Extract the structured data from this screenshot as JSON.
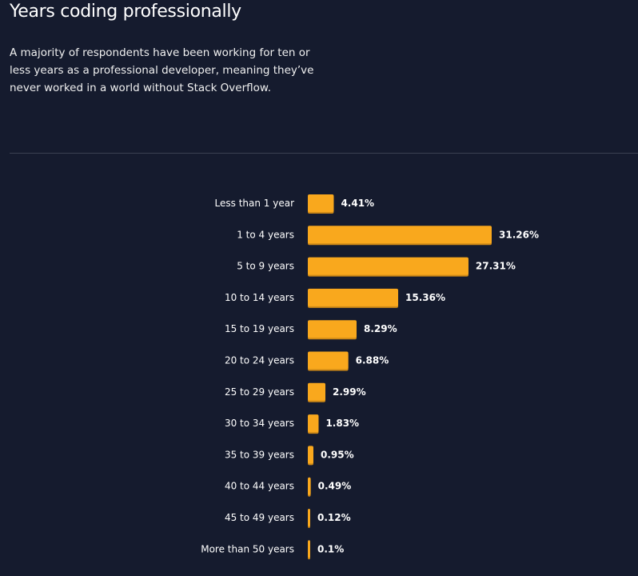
{
  "header": {
    "title": "Years coding professionally",
    "description": "A majority of respondents have been working for ten or less years as a professional developer, meaning they’ve never worked in a world without Stack Overflow."
  },
  "chart_data": {
    "type": "bar",
    "orientation": "horizontal",
    "title": "",
    "xlabel": "",
    "ylabel": "",
    "categories": [
      "Less than 1 year",
      "1 to 4 years",
      "5 to 9 years",
      "10 to 14 years",
      "15 to 19 years",
      "20 to 24 years",
      "25 to 29 years",
      "30 to 34 years",
      "35 to 39 years",
      "40 to 44 years",
      "45 to 49 years",
      "More than 50 years"
    ],
    "values": [
      4.41,
      31.26,
      27.31,
      15.36,
      8.29,
      6.88,
      2.99,
      1.83,
      0.95,
      0.49,
      0.12,
      0.1
    ],
    "value_labels": [
      "4.41%",
      "31.26%",
      "27.31%",
      "15.36%",
      "8.29%",
      "6.88%",
      "2.99%",
      "1.83%",
      "0.95%",
      "0.49%",
      "0.12%",
      "0.1%"
    ],
    "unit": "%",
    "grid": false,
    "legend": "none",
    "colors": {
      "bar": "#f9a81d",
      "background": "#151b2e",
      "text": "#ffffff"
    }
  }
}
